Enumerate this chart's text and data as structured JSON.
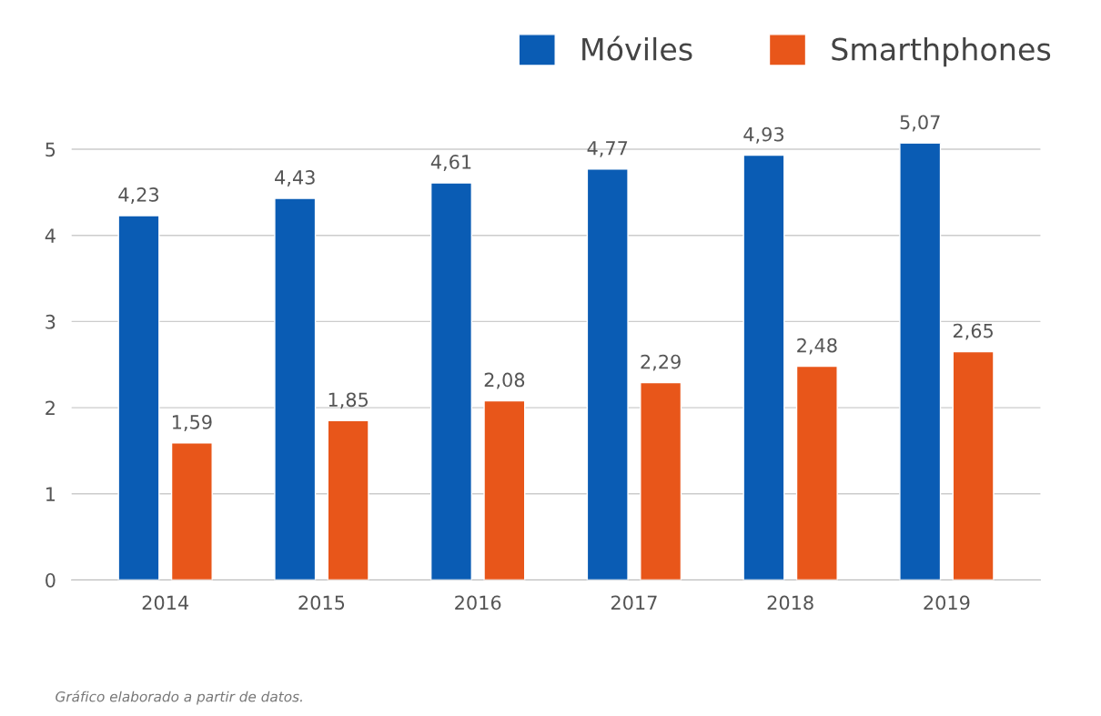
{
  "chart_data": {
    "type": "bar",
    "categories": [
      "2014",
      "2015",
      "2016",
      "2017",
      "2018",
      "2019"
    ],
    "series": [
      {
        "name": "Móviles",
        "color": "#0a5cb4",
        "values": [
          4.23,
          4.43,
          4.61,
          4.77,
          4.93,
          5.07
        ],
        "value_labels": [
          "4,23",
          "4,43",
          "4,61",
          "4,77",
          "4,93",
          "5,07"
        ]
      },
      {
        "name": "Smarthphones",
        "color": "#e8561a",
        "values": [
          1.59,
          1.85,
          2.08,
          2.29,
          2.48,
          2.65
        ],
        "value_labels": [
          "1,59",
          "1,85",
          "2,08",
          "2,29",
          "2,48",
          "2,65"
        ]
      }
    ],
    "ylim": [
      0,
      5.07
    ],
    "yticks": [
      0,
      1,
      2,
      3,
      4,
      5
    ],
    "grid": "y",
    "legend": "top right",
    "annotations": [
      "Gráfico elaborado a partir de datos."
    ]
  }
}
